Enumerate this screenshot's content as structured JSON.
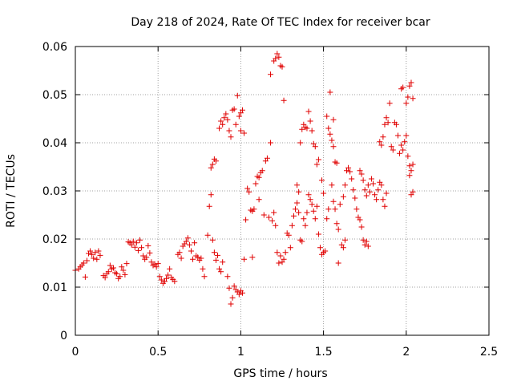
{
  "chart_data": {
    "type": "scatter",
    "title": "Day 218 of 2024, Rate Of TEC Index for receiver bcar",
    "xlabel": "GPS time / hours",
    "ylabel": "ROTI / TECUs",
    "xlim": [
      0,
      2.5
    ],
    "ylim": [
      0,
      0.06
    ],
    "x_ticks": [
      "0",
      "0.5",
      "1",
      "1.5",
      "2",
      "2.5"
    ],
    "y_ticks": [
      "0",
      "0.01",
      "0.02",
      "0.03",
      "0.04",
      "0.05",
      "0.06"
    ],
    "grid": true,
    "marker": "+",
    "series": [
      {
        "color": "#e00000",
        "points": [
          [
            0.0,
            0.0135
          ],
          [
            0.02,
            0.0138
          ],
          [
            0.03,
            0.0142
          ],
          [
            0.04,
            0.0146
          ],
          [
            0.05,
            0.015
          ],
          [
            0.06,
            0.0121
          ],
          [
            0.07,
            0.0155
          ],
          [
            0.08,
            0.017
          ],
          [
            0.09,
            0.0175
          ],
          [
            0.1,
            0.0168
          ],
          [
            0.11,
            0.016
          ],
          [
            0.12,
            0.0172
          ],
          [
            0.13,
            0.0158
          ],
          [
            0.14,
            0.0175
          ],
          [
            0.15,
            0.0166
          ],
          [
            0.17,
            0.0124
          ],
          [
            0.18,
            0.012
          ],
          [
            0.19,
            0.0128
          ],
          [
            0.2,
            0.0132
          ],
          [
            0.21,
            0.0145
          ],
          [
            0.22,
            0.0138
          ],
          [
            0.23,
            0.014
          ],
          [
            0.24,
            0.013
          ],
          [
            0.25,
            0.0128
          ],
          [
            0.26,
            0.0118
          ],
          [
            0.27,
            0.0122
          ],
          [
            0.28,
            0.0142
          ],
          [
            0.29,
            0.0135
          ],
          [
            0.3,
            0.0126
          ],
          [
            0.31,
            0.0149
          ],
          [
            0.32,
            0.0194
          ],
          [
            0.33,
            0.0192
          ],
          [
            0.34,
            0.0188
          ],
          [
            0.35,
            0.0195
          ],
          [
            0.36,
            0.0183
          ],
          [
            0.37,
            0.0192
          ],
          [
            0.38,
            0.0176
          ],
          [
            0.39,
            0.0198
          ],
          [
            0.4,
            0.0182
          ],
          [
            0.41,
            0.0165
          ],
          [
            0.42,
            0.0158
          ],
          [
            0.43,
            0.0162
          ],
          [
            0.44,
            0.0186
          ],
          [
            0.45,
            0.0171
          ],
          [
            0.46,
            0.0152
          ],
          [
            0.47,
            0.0145
          ],
          [
            0.48,
            0.0148
          ],
          [
            0.49,
            0.0142
          ],
          [
            0.5,
            0.0149
          ],
          [
            0.51,
            0.0122
          ],
          [
            0.52,
            0.0115
          ],
          [
            0.53,
            0.0108
          ],
          [
            0.54,
            0.0112
          ],
          [
            0.55,
            0.0118
          ],
          [
            0.56,
            0.0125
          ],
          [
            0.57,
            0.0138
          ],
          [
            0.58,
            0.012
          ],
          [
            0.59,
            0.0116
          ],
          [
            0.6,
            0.0112
          ],
          [
            0.62,
            0.0168
          ],
          [
            0.63,
            0.0172
          ],
          [
            0.64,
            0.016
          ],
          [
            0.65,
            0.0185
          ],
          [
            0.66,
            0.019
          ],
          [
            0.67,
            0.0195
          ],
          [
            0.68,
            0.0202
          ],
          [
            0.69,
            0.0188
          ],
          [
            0.7,
            0.0175
          ],
          [
            0.71,
            0.0158
          ],
          [
            0.72,
            0.0192
          ],
          [
            0.73,
            0.0165
          ],
          [
            0.74,
            0.0162
          ],
          [
            0.75,
            0.0156
          ],
          [
            0.76,
            0.016
          ],
          [
            0.77,
            0.0138
          ],
          [
            0.78,
            0.0122
          ],
          [
            0.8,
            0.0208
          ],
          [
            0.81,
            0.0268
          ],
          [
            0.82,
            0.0292
          ],
          [
            0.82,
            0.0348
          ],
          [
            0.83,
            0.0355
          ],
          [
            0.84,
            0.0366
          ],
          [
            0.85,
            0.0362
          ],
          [
            0.83,
            0.0198
          ],
          [
            0.84,
            0.0172
          ],
          [
            0.85,
            0.0156
          ],
          [
            0.86,
            0.0166
          ],
          [
            0.87,
            0.0138
          ],
          [
            0.88,
            0.0132
          ],
          [
            0.89,
            0.0152
          ],
          [
            0.87,
            0.043
          ],
          [
            0.88,
            0.0445
          ],
          [
            0.89,
            0.0438
          ],
          [
            0.9,
            0.0452
          ],
          [
            0.91,
            0.046
          ],
          [
            0.92,
            0.0448
          ],
          [
            0.93,
            0.0425
          ],
          [
            0.94,
            0.0412
          ],
          [
            0.95,
            0.0468
          ],
          [
            0.96,
            0.047
          ],
          [
            0.97,
            0.0438
          ],
          [
            0.98,
            0.0498
          ],
          [
            0.99,
            0.0455
          ],
          [
            1.0,
            0.0462
          ],
          [
            1.01,
            0.0468
          ],
          [
            1.0,
            0.0425
          ],
          [
            1.02,
            0.042
          ],
          [
            0.92,
            0.0122
          ],
          [
            0.93,
            0.0098
          ],
          [
            0.94,
            0.0065
          ],
          [
            0.95,
            0.0078
          ],
          [
            0.96,
            0.0102
          ],
          [
            0.97,
            0.0095
          ],
          [
            0.98,
            0.009
          ],
          [
            0.99,
            0.0085
          ],
          [
            1.0,
            0.0092
          ],
          [
            1.01,
            0.0088
          ],
          [
            1.02,
            0.0158
          ],
          [
            1.03,
            0.024
          ],
          [
            1.04,
            0.0305
          ],
          [
            1.05,
            0.0298
          ],
          [
            1.06,
            0.026
          ],
          [
            1.07,
            0.0258
          ],
          [
            1.08,
            0.0262
          ],
          [
            1.09,
            0.0315
          ],
          [
            1.1,
            0.033
          ],
          [
            1.11,
            0.0328
          ],
          [
            1.12,
            0.0338
          ],
          [
            1.13,
            0.0342
          ],
          [
            1.14,
            0.025
          ],
          [
            1.15,
            0.0362
          ],
          [
            1.16,
            0.0368
          ],
          [
            1.17,
            0.0245
          ],
          [
            1.18,
            0.04
          ],
          [
            1.19,
            0.0238
          ],
          [
            1.2,
            0.0255
          ],
          [
            1.21,
            0.0228
          ],
          [
            1.07,
            0.0162
          ],
          [
            1.11,
            0.0282
          ],
          [
            1.18,
            0.0542
          ],
          [
            1.2,
            0.057
          ],
          [
            1.21,
            0.0575
          ],
          [
            1.22,
            0.0585
          ],
          [
            1.23,
            0.0578
          ],
          [
            1.24,
            0.056
          ],
          [
            1.25,
            0.0558
          ],
          [
            1.26,
            0.0488
          ],
          [
            1.22,
            0.0172
          ],
          [
            1.23,
            0.015
          ],
          [
            1.24,
            0.0165
          ],
          [
            1.25,
            0.0152
          ],
          [
            1.26,
            0.0158
          ],
          [
            1.27,
            0.0172
          ],
          [
            1.28,
            0.0212
          ],
          [
            1.29,
            0.0208
          ],
          [
            1.3,
            0.0182
          ],
          [
            1.31,
            0.0228
          ],
          [
            1.32,
            0.0248
          ],
          [
            1.33,
            0.0262
          ],
          [
            1.34,
            0.0275
          ],
          [
            1.35,
            0.0255
          ],
          [
            1.36,
            0.0198
          ],
          [
            1.37,
            0.0195
          ],
          [
            1.34,
            0.0312
          ],
          [
            1.35,
            0.0298
          ],
          [
            1.36,
            0.04
          ],
          [
            1.37,
            0.0428
          ],
          [
            1.38,
            0.0438
          ],
          [
            1.39,
            0.0432
          ],
          [
            1.4,
            0.043
          ],
          [
            1.41,
            0.0465
          ],
          [
            1.42,
            0.0445
          ],
          [
            1.43,
            0.0425
          ],
          [
            1.44,
            0.0398
          ],
          [
            1.45,
            0.0392
          ],
          [
            1.46,
            0.0355
          ],
          [
            1.47,
            0.0365
          ],
          [
            1.38,
            0.0242
          ],
          [
            1.39,
            0.0228
          ],
          [
            1.4,
            0.0255
          ],
          [
            1.41,
            0.0292
          ],
          [
            1.42,
            0.0282
          ],
          [
            1.43,
            0.0272
          ],
          [
            1.44,
            0.0258
          ],
          [
            1.45,
            0.0242
          ],
          [
            1.46,
            0.0268
          ],
          [
            1.47,
            0.021
          ],
          [
            1.48,
            0.0182
          ],
          [
            1.49,
            0.0168
          ],
          [
            1.5,
            0.0172
          ],
          [
            1.51,
            0.0175
          ],
          [
            1.52,
            0.0242
          ],
          [
            1.53,
            0.0262
          ],
          [
            1.49,
            0.0322
          ],
          [
            1.5,
            0.0295
          ],
          [
            1.52,
            0.0455
          ],
          [
            1.53,
            0.043
          ],
          [
            1.54,
            0.0418
          ],
          [
            1.55,
            0.0405
          ],
          [
            1.56,
            0.0392
          ],
          [
            1.57,
            0.036
          ],
          [
            1.58,
            0.0358
          ],
          [
            1.55,
            0.0312
          ],
          [
            1.56,
            0.0278
          ],
          [
            1.57,
            0.0262
          ],
          [
            1.58,
            0.0232
          ],
          [
            1.59,
            0.022
          ],
          [
            1.6,
            0.0272
          ],
          [
            1.61,
            0.0188
          ],
          [
            1.62,
            0.0182
          ],
          [
            1.63,
            0.0198
          ],
          [
            1.59,
            0.015
          ],
          [
            1.54,
            0.0505
          ],
          [
            1.56,
            0.0448
          ],
          [
            1.62,
            0.0288
          ],
          [
            1.63,
            0.0312
          ],
          [
            1.64,
            0.0342
          ],
          [
            1.65,
            0.0348
          ],
          [
            1.66,
            0.034
          ],
          [
            1.67,
            0.0325
          ],
          [
            1.68,
            0.0302
          ],
          [
            1.69,
            0.0285
          ],
          [
            1.7,
            0.0262
          ],
          [
            1.71,
            0.0245
          ],
          [
            1.72,
            0.024
          ],
          [
            1.73,
            0.0225
          ],
          [
            1.74,
            0.0198
          ],
          [
            1.75,
            0.0188
          ],
          [
            1.76,
            0.0195
          ],
          [
            1.77,
            0.0185
          ],
          [
            1.72,
            0.0342
          ],
          [
            1.73,
            0.0335
          ],
          [
            1.74,
            0.0322
          ],
          [
            1.75,
            0.0302
          ],
          [
            1.76,
            0.029
          ],
          [
            1.77,
            0.0312
          ],
          [
            1.78,
            0.0298
          ],
          [
            1.79,
            0.0325
          ],
          [
            1.8,
            0.0315
          ],
          [
            1.81,
            0.0292
          ],
          [
            1.82,
            0.0282
          ],
          [
            1.83,
            0.0302
          ],
          [
            1.84,
            0.0318
          ],
          [
            1.85,
            0.0312
          ],
          [
            1.86,
            0.0282
          ],
          [
            1.87,
            0.0268
          ],
          [
            1.88,
            0.0295
          ],
          [
            1.84,
            0.0402
          ],
          [
            1.85,
            0.0395
          ],
          [
            1.86,
            0.0412
          ],
          [
            1.87,
            0.0438
          ],
          [
            1.88,
            0.0452
          ],
          [
            1.89,
            0.0442
          ],
          [
            1.9,
            0.0482
          ],
          [
            1.91,
            0.0392
          ],
          [
            1.92,
            0.0385
          ],
          [
            1.93,
            0.0442
          ],
          [
            1.94,
            0.0438
          ],
          [
            1.95,
            0.0415
          ],
          [
            1.96,
            0.0378
          ],
          [
            1.97,
            0.0395
          ],
          [
            1.98,
            0.0385
          ],
          [
            1.99,
            0.0402
          ],
          [
            2.0,
            0.0415
          ],
          [
            2.01,
            0.0372
          ],
          [
            2.02,
            0.0352
          ],
          [
            1.97,
            0.0512
          ],
          [
            1.98,
            0.0515
          ],
          [
            2.0,
            0.0482
          ],
          [
            2.01,
            0.0495
          ],
          [
            2.02,
            0.0518
          ],
          [
            2.03,
            0.0525
          ],
          [
            2.04,
            0.0492
          ],
          [
            2.03,
            0.0342
          ],
          [
            2.04,
            0.0355
          ],
          [
            2.03,
            0.0292
          ],
          [
            2.04,
            0.0298
          ],
          [
            2.02,
            0.0332
          ]
        ]
      }
    ]
  }
}
